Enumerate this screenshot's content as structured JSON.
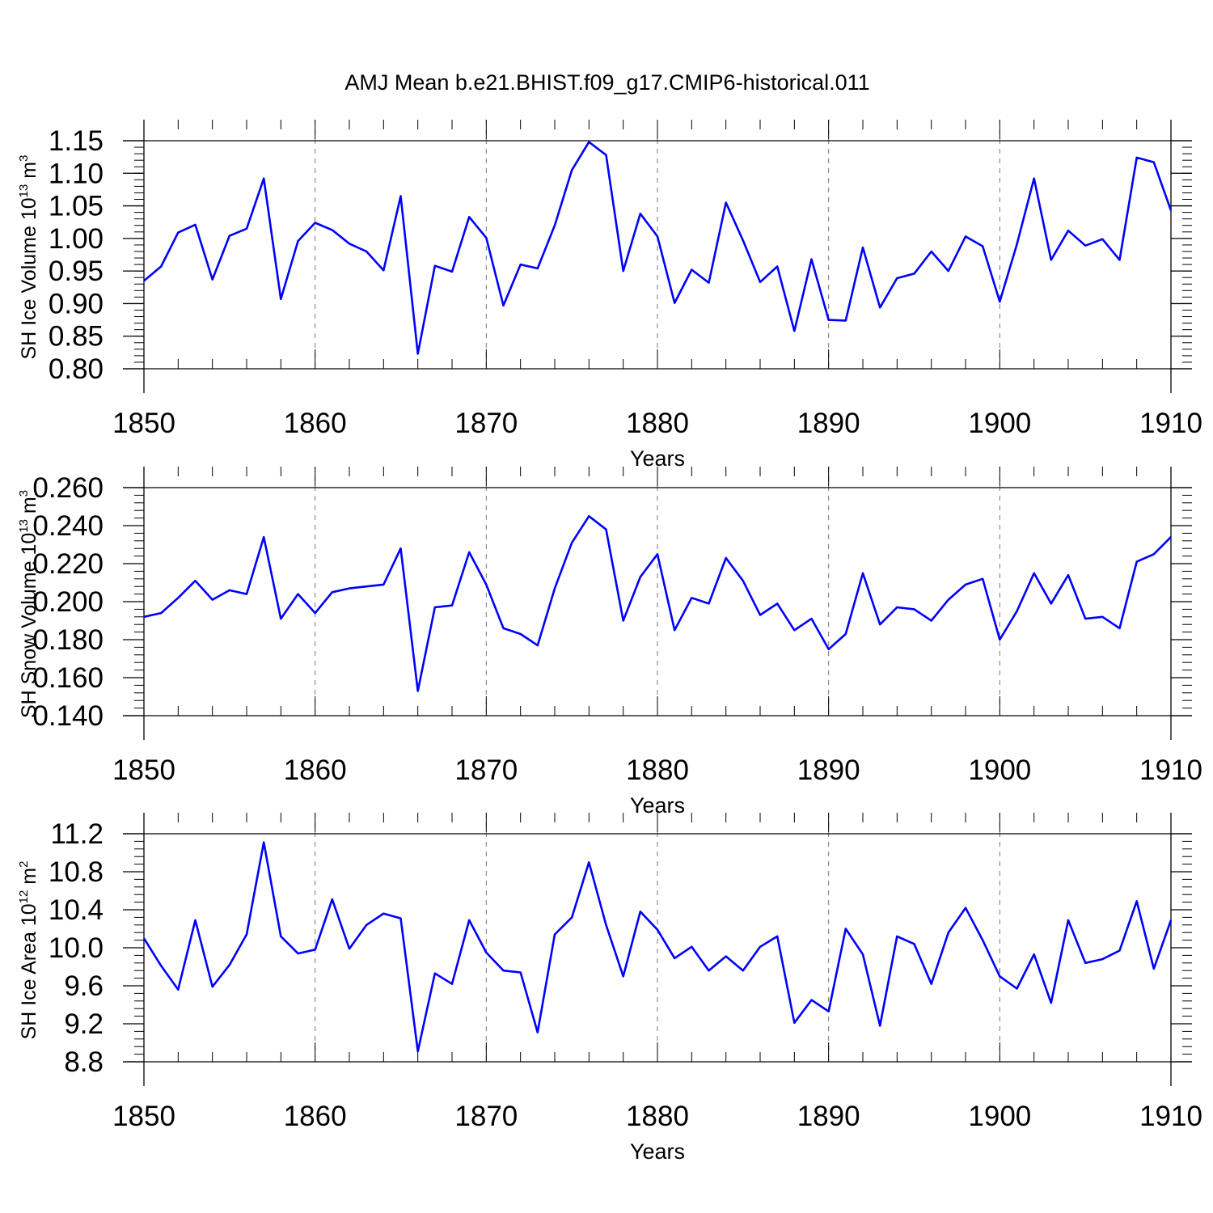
{
  "title": "AMJ Mean b.e21.BHIST.f09_g17.CMIP6-historical.011",
  "colors": {
    "line": "#0000ff",
    "axes": "#000000",
    "grid": "#777777"
  },
  "chart_data": [
    {
      "type": "line",
      "ylabel_main": "SH Ice Volume 10",
      "ylabel_exp": "13",
      "ylabel_unit": " m",
      "ylabel_unit_exp": "3",
      "xlabel": "Years",
      "xlim": [
        1850,
        1910
      ],
      "ylim": [
        0.8,
        1.15
      ],
      "x_ticks": [
        "1850",
        "1860",
        "1870",
        "1880",
        "1890",
        "1900",
        "1910"
      ],
      "y_ticks": [
        "0.80",
        "0.85",
        "0.90",
        "0.95",
        "1.00",
        "1.05",
        "1.10",
        "1.15"
      ],
      "y_tick_values": [
        0.8,
        0.85,
        0.9,
        0.95,
        1.0,
        1.05,
        1.1,
        1.15
      ],
      "y_minor_step": 0.01,
      "grid": "vertical dashed at major x ticks",
      "x_start": 1850,
      "values": [
        0.935,
        0.957,
        1.009,
        1.021,
        0.937,
        1.004,
        1.015,
        1.092,
        0.907,
        0.996,
        1.024,
        1.013,
        0.992,
        0.98,
        0.951,
        1.065,
        0.823,
        0.958,
        0.949,
        1.033,
        1.001,
        0.897,
        0.96,
        0.954,
        1.02,
        1.105,
        1.148,
        1.128,
        0.95,
        1.038,
        1.003,
        0.901,
        0.952,
        0.932,
        1.055,
        0.997,
        0.933,
        0.957,
        0.858,
        0.968,
        0.875,
        0.874,
        0.986,
        0.894,
        0.939,
        0.946,
        0.98,
        0.95,
        1.003,
        0.988,
        0.903,
        0.991,
        1.092,
        0.967,
        1.012,
        0.989,
        0.999,
        0.967,
        1.124,
        1.117,
        1.043
      ]
    },
    {
      "type": "line",
      "ylabel_main": "SH Snow Volume 10",
      "ylabel_exp": "13",
      "ylabel_unit": " m",
      "ylabel_unit_exp": "3",
      "xlabel": "Years",
      "xlim": [
        1850,
        1910
      ],
      "ylim": [
        0.14,
        0.26
      ],
      "x_ticks": [
        "1850",
        "1860",
        "1870",
        "1880",
        "1890",
        "1900",
        "1910"
      ],
      "y_ticks": [
        "0.140",
        "0.160",
        "0.180",
        "0.200",
        "0.220",
        "0.240",
        "0.260"
      ],
      "y_tick_values": [
        0.14,
        0.16,
        0.18,
        0.2,
        0.22,
        0.24,
        0.26
      ],
      "y_minor_step": 0.004,
      "grid": "vertical dashed at major x ticks",
      "x_start": 1850,
      "values": [
        0.192,
        0.194,
        0.202,
        0.211,
        0.201,
        0.206,
        0.204,
        0.234,
        0.191,
        0.204,
        0.194,
        0.205,
        0.207,
        0.208,
        0.209,
        0.228,
        0.153,
        0.197,
        0.198,
        0.226,
        0.209,
        0.186,
        0.183,
        0.177,
        0.207,
        0.231,
        0.245,
        0.238,
        0.19,
        0.213,
        0.225,
        0.185,
        0.202,
        0.199,
        0.223,
        0.211,
        0.193,
        0.199,
        0.185,
        0.191,
        0.175,
        0.183,
        0.215,
        0.188,
        0.197,
        0.196,
        0.19,
        0.201,
        0.209,
        0.212,
        0.18,
        0.195,
        0.215,
        0.199,
        0.214,
        0.191,
        0.192,
        0.186,
        0.221,
        0.225,
        0.234
      ]
    },
    {
      "type": "line",
      "ylabel_main": "SH Ice Area 10",
      "ylabel_exp": "12",
      "ylabel_unit": " m",
      "ylabel_unit_exp": "2",
      "xlabel": "Years",
      "xlim": [
        1850,
        1910
      ],
      "ylim": [
        8.8,
        11.2
      ],
      "x_ticks": [
        "1850",
        "1860",
        "1870",
        "1880",
        "1890",
        "1900",
        "1910"
      ],
      "y_ticks": [
        "8.8",
        "9.2",
        "9.6",
        "10.0",
        "10.4",
        "10.8",
        "11.2"
      ],
      "y_tick_values": [
        8.8,
        9.2,
        9.6,
        10.0,
        10.4,
        10.8,
        11.2
      ],
      "y_minor_step": 0.08,
      "grid": "vertical dashed at major x ticks",
      "x_start": 1850,
      "values": [
        10.1,
        9.81,
        9.56,
        10.29,
        9.59,
        9.82,
        10.14,
        11.11,
        10.12,
        9.94,
        9.98,
        10.51,
        9.99,
        10.24,
        10.36,
        10.31,
        8.91,
        9.73,
        9.62,
        10.29,
        9.95,
        9.76,
        9.74,
        9.11,
        10.14,
        10.32,
        10.9,
        10.24,
        9.7,
        10.38,
        10.19,
        9.89,
        10.01,
        9.76,
        9.91,
        9.76,
        10.01,
        10.12,
        9.21,
        9.45,
        9.33,
        10.2,
        9.93,
        9.18,
        10.12,
        10.04,
        9.62,
        10.16,
        10.42,
        10.08,
        9.7,
        9.57,
        9.93,
        9.42,
        10.29,
        9.84,
        9.88,
        9.97,
        10.49,
        9.78,
        10.29
      ]
    }
  ]
}
